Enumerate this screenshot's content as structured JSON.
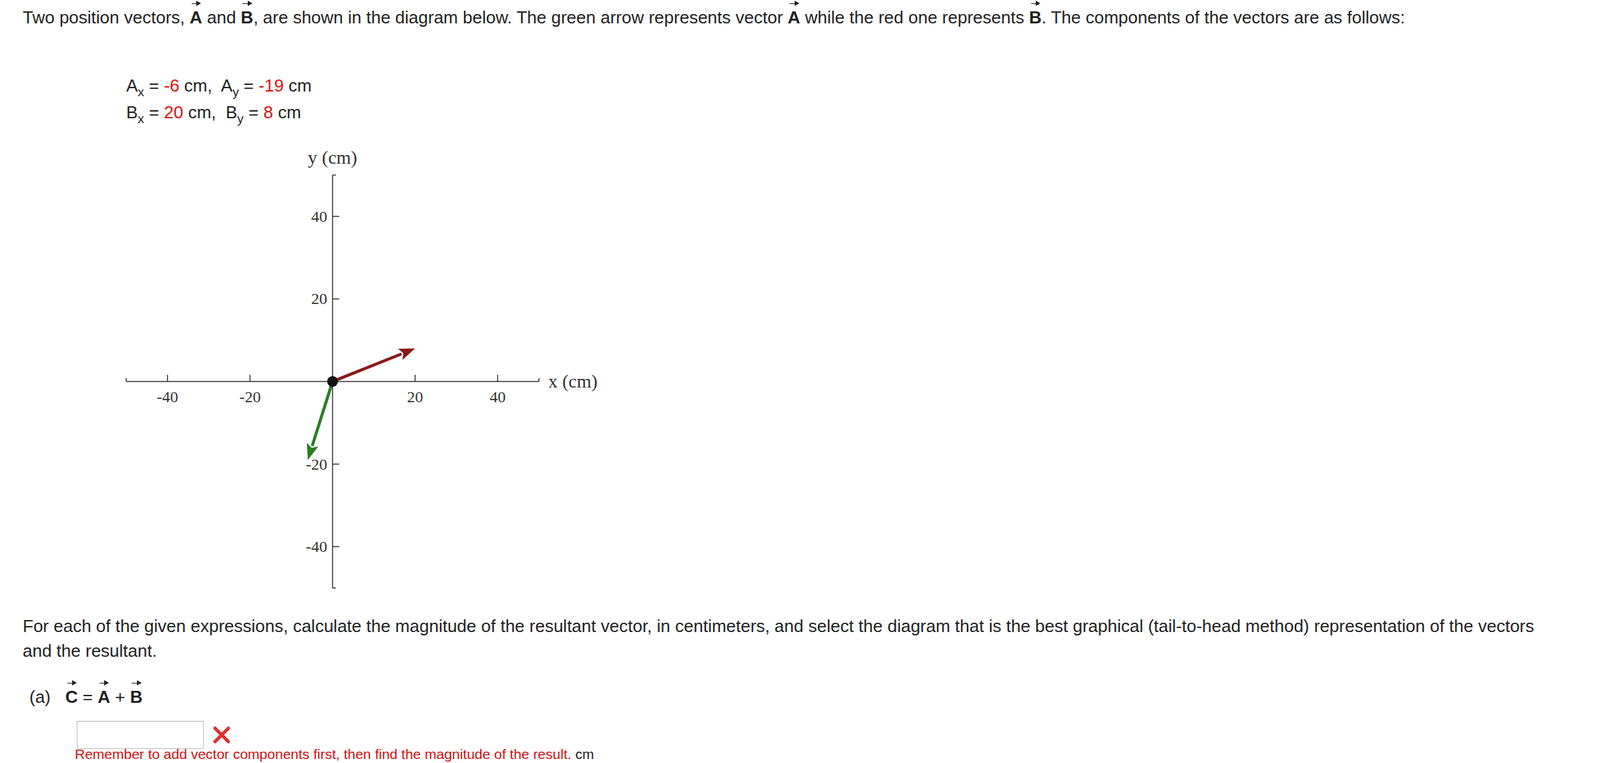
{
  "intro": [
    {
      "text": "Two position vectors, "
    },
    {
      "text": "A",
      "vec": true
    },
    {
      "text": " and "
    },
    {
      "text": "B",
      "vec": true
    },
    {
      "text": ", are shown in the diagram below. The green arrow represents vector "
    },
    {
      "text": "A",
      "vec": true
    },
    {
      "text": " while the red one represents "
    },
    {
      "text": "B",
      "vec": true
    },
    {
      "text": ". The components of the vectors are as follows:"
    }
  ],
  "components": {
    "equals": "=",
    "separator": ",",
    "unit": "cm",
    "axes": [
      "x",
      "y"
    ]
  },
  "chart_data": {
    "type": "vector",
    "xlabel": "x (cm)",
    "ylabel": "y (cm)",
    "xlim": [
      -50,
      50
    ],
    "ylim": [
      -50,
      50
    ],
    "xticks": [
      -40,
      -20,
      20,
      40
    ],
    "yticks": [
      -40,
      -20,
      20,
      40
    ],
    "series": [
      {
        "name": "A",
        "color": "#2a7d22",
        "x": [
          -6
        ],
        "values": [
          -19
        ]
      },
      {
        "name": "B",
        "color": "#8b1a1a",
        "x": [
          20
        ],
        "values": [
          8
        ]
      }
    ]
  },
  "question": {
    "text": "For each of the given expressions, calculate the magnitude of the resultant vector, in centimeters, and select the diagram that is the best graphical (tail-to-head method) representation of the vectors and the resultant.",
    "part": "(a)",
    "expression": [
      {
        "text": "C",
        "vec": true
      },
      {
        "text": " = "
      },
      {
        "text": "A",
        "vec": true
      },
      {
        "text": " + "
      },
      {
        "text": "B",
        "vec": true
      }
    ],
    "hint": "Remember to add vector components first, then find the magnitude of the result.",
    "hint_unit": "cm"
  }
}
